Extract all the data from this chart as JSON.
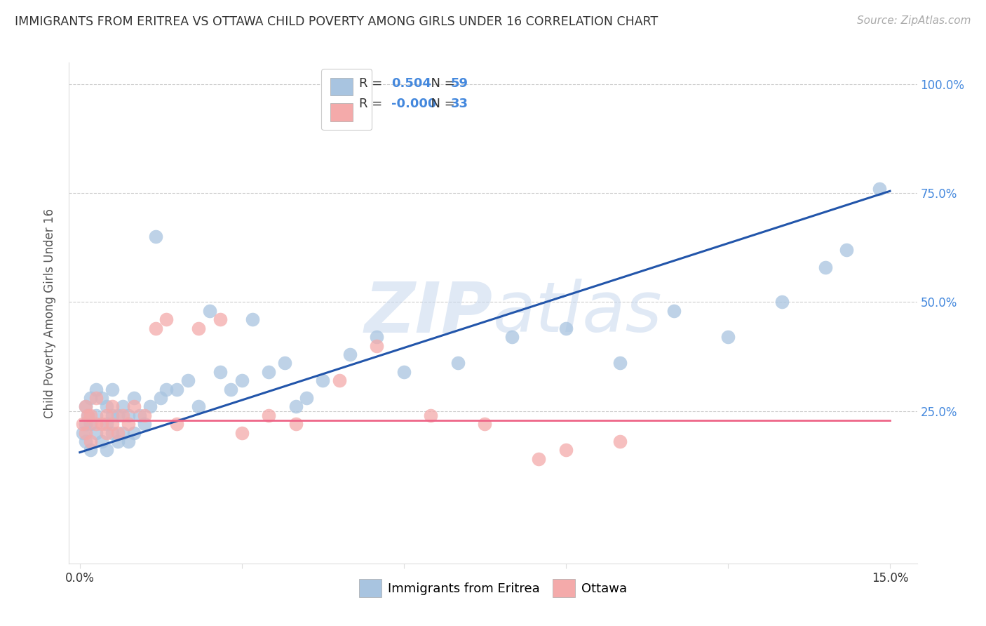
{
  "title": "IMMIGRANTS FROM ERITREA VS OTTAWA CHILD POVERTY AMONG GIRLS UNDER 16 CORRELATION CHART",
  "source": "Source: ZipAtlas.com",
  "ylabel": "Child Poverty Among Girls Under 16",
  "legend_eritrea_r": "0.504",
  "legend_eritrea_n": "59",
  "legend_ottawa_r": "-0.000",
  "legend_ottawa_n": "33",
  "blue_scatter": "#A8C4E0",
  "pink_scatter": "#F4AAAA",
  "line_blue": "#2255AA",
  "line_pink": "#EE6688",
  "right_axis_color": "#4488DD",
  "watermark_color": "#C8D8EE",
  "legend_text_color": "#4488DD",
  "legend_r_label_color": "#333333",
  "eritrea_x": [
    0.0005,
    0.001,
    0.001,
    0.001,
    0.0015,
    0.002,
    0.002,
    0.002,
    0.003,
    0.003,
    0.003,
    0.004,
    0.004,
    0.005,
    0.005,
    0.005,
    0.006,
    0.006,
    0.006,
    0.007,
    0.007,
    0.008,
    0.008,
    0.009,
    0.009,
    0.01,
    0.01,
    0.011,
    0.012,
    0.013,
    0.014,
    0.015,
    0.016,
    0.018,
    0.02,
    0.022,
    0.024,
    0.026,
    0.028,
    0.03,
    0.032,
    0.035,
    0.038,
    0.04,
    0.042,
    0.045,
    0.05,
    0.055,
    0.06,
    0.07,
    0.08,
    0.09,
    0.1,
    0.11,
    0.12,
    0.13,
    0.138,
    0.142,
    0.148
  ],
  "eritrea_y": [
    0.2,
    0.18,
    0.22,
    0.26,
    0.24,
    0.16,
    0.22,
    0.28,
    0.2,
    0.24,
    0.3,
    0.18,
    0.28,
    0.16,
    0.22,
    0.26,
    0.2,
    0.24,
    0.3,
    0.18,
    0.24,
    0.2,
    0.26,
    0.18,
    0.24,
    0.2,
    0.28,
    0.24,
    0.22,
    0.26,
    0.65,
    0.28,
    0.3,
    0.3,
    0.32,
    0.26,
    0.48,
    0.34,
    0.3,
    0.32,
    0.46,
    0.34,
    0.36,
    0.26,
    0.28,
    0.32,
    0.38,
    0.42,
    0.34,
    0.36,
    0.42,
    0.44,
    0.36,
    0.48,
    0.42,
    0.5,
    0.58,
    0.62,
    0.76
  ],
  "ottawa_x": [
    0.0005,
    0.001,
    0.001,
    0.0015,
    0.002,
    0.002,
    0.003,
    0.003,
    0.004,
    0.005,
    0.005,
    0.006,
    0.006,
    0.007,
    0.008,
    0.009,
    0.01,
    0.012,
    0.014,
    0.016,
    0.018,
    0.022,
    0.026,
    0.03,
    0.035,
    0.04,
    0.048,
    0.055,
    0.065,
    0.075,
    0.085,
    0.09,
    0.1
  ],
  "ottawa_y": [
    0.22,
    0.2,
    0.26,
    0.24,
    0.18,
    0.24,
    0.22,
    0.28,
    0.22,
    0.2,
    0.24,
    0.26,
    0.22,
    0.2,
    0.24,
    0.22,
    0.26,
    0.24,
    0.44,
    0.46,
    0.22,
    0.44,
    0.46,
    0.2,
    0.24,
    0.22,
    0.32,
    0.4,
    0.24,
    0.22,
    0.14,
    0.16,
    0.18
  ],
  "blue_line_x": [
    0.0,
    0.15
  ],
  "blue_line_y": [
    0.155,
    0.755
  ],
  "pink_line_x": [
    0.0,
    0.15
  ],
  "pink_line_y": [
    0.228,
    0.228
  ],
  "xlim": [
    -0.002,
    0.155
  ],
  "ylim": [
    -0.1,
    1.05
  ],
  "x_ticks": [
    0.0,
    0.03,
    0.06,
    0.09,
    0.12,
    0.15
  ],
  "y_ticks_right": [
    0.25,
    0.5,
    0.75,
    1.0
  ],
  "y_tick_labels_right": [
    "25.0%",
    "50.0%",
    "75.0%",
    "100.0%"
  ]
}
